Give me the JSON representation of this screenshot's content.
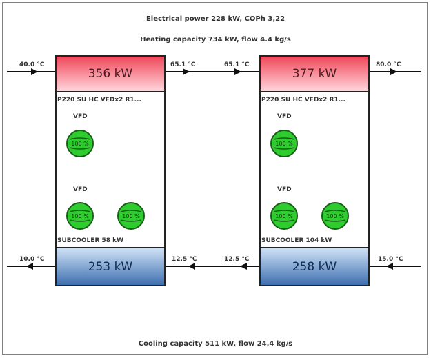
{
  "header": {
    "electrical": "Electrical power 228 kW, COPh 3,22",
    "heating": "Heating capacity 734 kW, flow 4.4 kg/s"
  },
  "footer": {
    "cooling": "Cooling capacity 511 kW, flow 24.4 kg/s"
  },
  "colors": {
    "condenser": "#f0485a",
    "evaporator": "#3e6fb0",
    "fan": "#2ecc2e"
  },
  "units": [
    {
      "condenser": "356 kW",
      "model": "P220 SU HC VFDx2 R1...",
      "vfd_top": "VFD",
      "fan_top": "100 %",
      "vfd_bottom": "VFD",
      "fans_bottom": [
        "100 %",
        "100 %"
      ],
      "subcooler": "SUBCOOLER 58 kW",
      "evaporator": "253 kW"
    },
    {
      "condenser": "377 kW",
      "model": "P220 SU HC VFDx2 R1...",
      "vfd_top": "VFD",
      "fan_top": "100 %",
      "vfd_bottom": "VFD",
      "fans_bottom": [
        "100 %",
        "100 %"
      ],
      "subcooler": "SUBCOOLER 104 kW",
      "evaporator": "258 kW"
    }
  ],
  "temps": {
    "hot_in": "40.0 °C",
    "hot_mid_out": "65.1 °C",
    "hot_mid_in": "65.1 °C",
    "hot_out": "80.0 °C",
    "cold_out": "10.0 °C",
    "cold_mid_out": "12.5 °C",
    "cold_mid_in": "12.5 °C",
    "cold_in": "15.0 °C"
  }
}
